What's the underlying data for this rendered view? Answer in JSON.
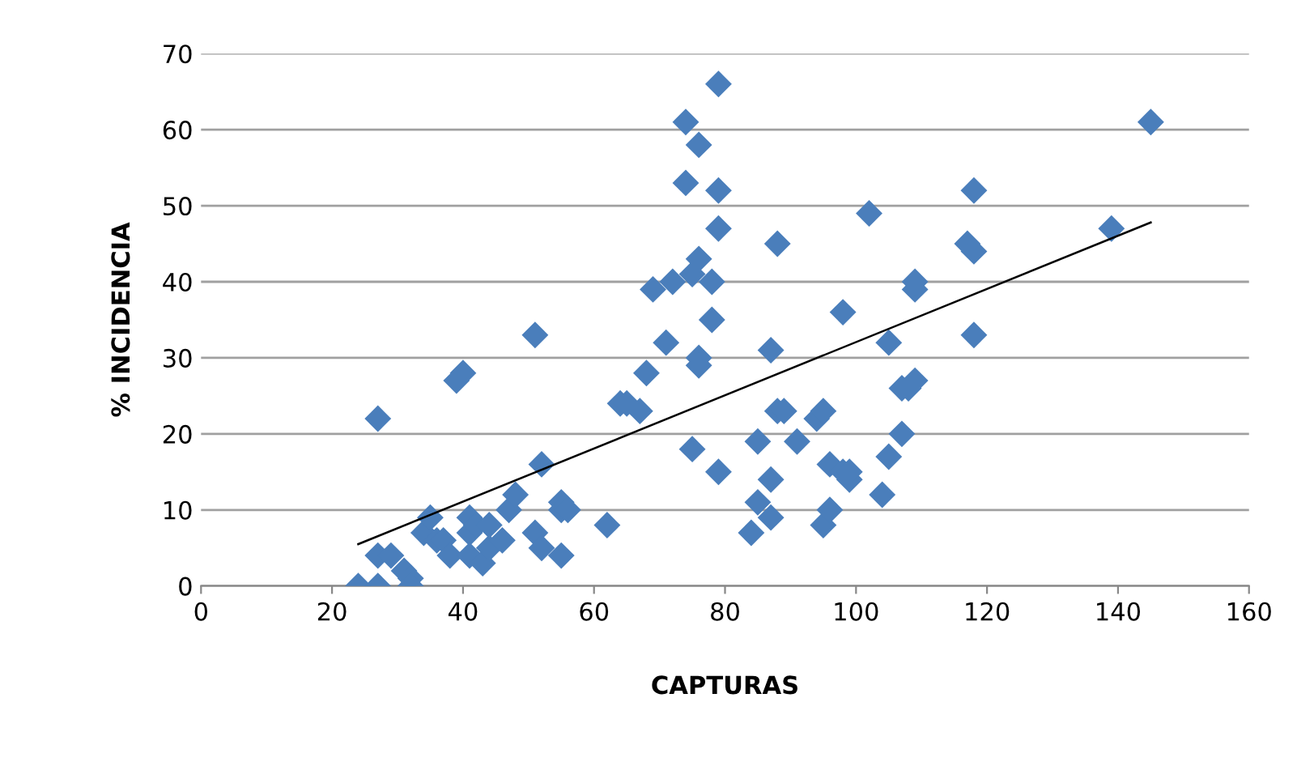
{
  "chart_data": {
    "type": "scatter",
    "xlabel": "CAPTURAS",
    "ylabel": "% INCIDENCIA",
    "xlim": [
      0,
      160
    ],
    "xticks": [
      0,
      20,
      40,
      60,
      80,
      100,
      120,
      140,
      160
    ],
    "ylim": [
      0,
      70
    ],
    "yticks": [
      0,
      10,
      20,
      30,
      40,
      50,
      60,
      70
    ],
    "grid": "y",
    "legend": false,
    "series": [
      {
        "marker": "diamond",
        "color": "#4a7ebb",
        "x": [
          24,
          27,
          27,
          27,
          29,
          31,
          32,
          32,
          34,
          35,
          36,
          37,
          38,
          39,
          40,
          41,
          41,
          41,
          42,
          43,
          44,
          44,
          46,
          47,
          48,
          51,
          51,
          52,
          52,
          55,
          55,
          55,
          56,
          62,
          64,
          65,
          67,
          68,
          69,
          71,
          72,
          74,
          74,
          75,
          75,
          76,
          76,
          76,
          76,
          78,
          78,
          79,
          79,
          79,
          79,
          84,
          85,
          85,
          87,
          87,
          87,
          88,
          88,
          89,
          91,
          94,
          95,
          95,
          96,
          96,
          98,
          98,
          99,
          99,
          102,
          104,
          105,
          105,
          107,
          107,
          108,
          109,
          109,
          109,
          117,
          118,
          118,
          118,
          139,
          145
        ],
        "values": [
          0,
          0,
          4,
          22,
          4,
          2,
          1,
          0,
          7,
          9,
          6,
          6,
          4,
          27,
          28,
          9,
          7,
          4,
          8,
          3,
          5,
          8,
          6,
          10,
          12,
          7,
          33,
          16,
          5,
          11,
          10,
          4,
          10,
          8,
          24,
          24,
          23,
          28,
          39,
          32,
          40,
          61,
          53,
          41,
          18,
          43,
          58,
          30,
          29,
          40,
          35,
          66,
          52,
          47,
          15,
          7,
          11,
          19,
          31,
          14,
          9,
          45,
          23,
          23,
          19,
          22,
          23,
          8,
          10,
          16,
          36,
          15,
          14,
          15,
          49,
          12,
          17,
          32,
          26,
          20,
          26,
          39,
          40,
          27,
          45,
          44,
          52,
          33,
          47,
          61
        ]
      },
      {
        "type": "line",
        "color": "#000000",
        "line_style": "solid",
        "marker": "none",
        "x": [
          24,
          145
        ],
        "values": [
          5.5,
          47.8
        ]
      }
    ]
  }
}
